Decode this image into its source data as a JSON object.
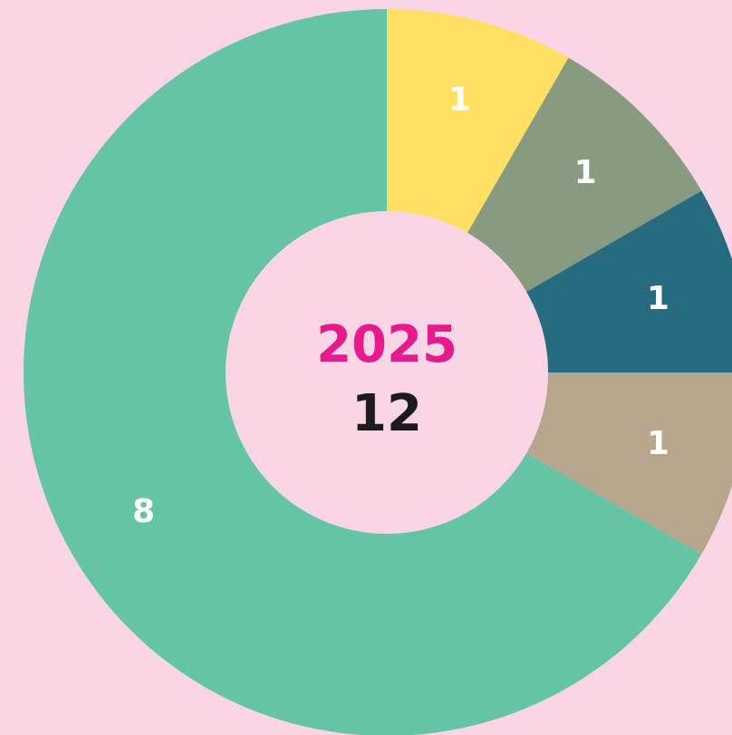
{
  "chart_data": {
    "type": "donut",
    "categories": [
      null,
      null,
      null,
      null,
      null
    ],
    "values": [
      1,
      1,
      1,
      1,
      8
    ],
    "colors": [
      "#FFE062",
      "#889B80",
      "#276B80",
      "#B6A68E",
      "#65C4A4"
    ],
    "center_label": "2025",
    "center_value": 12
  }
}
